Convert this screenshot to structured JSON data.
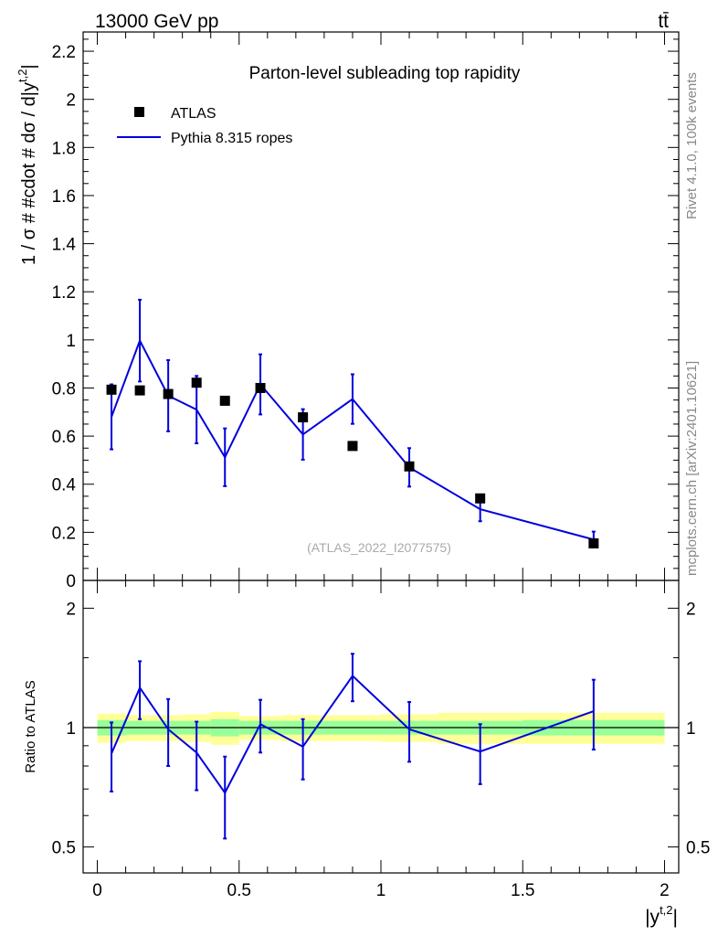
{
  "header": {
    "left": "13000 GeV pp",
    "right": "tt̄"
  },
  "side_labels": {
    "rivet": "Rivet 4.1.0,  100k events",
    "mcplots": "mcplots.cern.ch [arXiv:2401.10621]"
  },
  "chart_data": {
    "type": "line",
    "title": "Parton-level subleading top rapidity",
    "watermark": "(ATLAS_2022_I2077575)",
    "ylabel_main": "1 / σ # #cdot # dσ / d|y^{t,2}|",
    "ylabel_main_parts": {
      "pre": "1 / σ # #cdot # dσ / d|y",
      "sup": "t,2",
      "post": "|"
    },
    "ylabel_ratio": "Ratio to ATLAS",
    "xlabel": "|y^{t,2}|",
    "xlabel_parts": {
      "pre": "|y",
      "sup": "t,2",
      "post": "|"
    },
    "xlim": [
      -0.05,
      2.05
    ],
    "ylim_main": [
      0,
      2.28
    ],
    "ylim_ratio": [
      0.43,
      2.35
    ],
    "x_ticks": [
      "0",
      "0.5",
      "1",
      "1.5",
      "2"
    ],
    "y_ticks_main": [
      "0",
      "0.2",
      "0.4",
      "0.6",
      "0.8",
      "1",
      "1.2",
      "1.4",
      "1.6",
      "1.8",
      "2",
      "2.2"
    ],
    "y_ticks_ratio": [
      "0.5",
      "1",
      "2"
    ],
    "legend": [
      {
        "label": "ATLAS",
        "marker": "square",
        "color": "#000000"
      },
      {
        "label": "Pythia 8.315 ropes",
        "marker": "line",
        "color": "#0000dd"
      }
    ],
    "bins": [
      {
        "x": 0.05,
        "lo": 0.0,
        "hi": 0.1,
        "data": 0.793,
        "mc": 0.68,
        "mc_err": 0.135
      },
      {
        "x": 0.15,
        "lo": 0.1,
        "hi": 0.2,
        "data": 0.79,
        "mc": 0.997,
        "mc_err": 0.17
      },
      {
        "x": 0.25,
        "lo": 0.2,
        "hi": 0.3,
        "data": 0.775,
        "mc": 0.768,
        "mc_err": 0.148
      },
      {
        "x": 0.35,
        "lo": 0.3,
        "hi": 0.4,
        "data": 0.822,
        "mc": 0.71,
        "mc_err": 0.14
      },
      {
        "x": 0.45,
        "lo": 0.4,
        "hi": 0.5,
        "data": 0.747,
        "mc": 0.512,
        "mc_err": 0.12
      },
      {
        "x": 0.575,
        "lo": 0.5,
        "hi": 0.65,
        "data": 0.8,
        "mc": 0.815,
        "mc_err": 0.125
      },
      {
        "x": 0.725,
        "lo": 0.65,
        "hi": 0.8,
        "data": 0.678,
        "mc": 0.607,
        "mc_err": 0.105
      },
      {
        "x": 0.9,
        "lo": 0.8,
        "hi": 1.0,
        "data": 0.559,
        "mc": 0.754,
        "mc_err": 0.103
      },
      {
        "x": 1.1,
        "lo": 1.0,
        "hi": 1.2,
        "data": 0.474,
        "mc": 0.47,
        "mc_err": 0.08
      },
      {
        "x": 1.35,
        "lo": 1.2,
        "hi": 1.5,
        "data": 0.341,
        "mc": 0.296,
        "mc_err": 0.05
      },
      {
        "x": 1.75,
        "lo": 1.5,
        "hi": 2.0,
        "data": 0.154,
        "mc": 0.17,
        "mc_err": 0.033
      }
    ],
    "ratio": [
      {
        "x": 0.05,
        "r": 0.86,
        "err": 0.17,
        "band_stat": 0.045,
        "band_tot": 0.085
      },
      {
        "x": 0.15,
        "r": 1.26,
        "err": 0.21,
        "band_stat": 0.04,
        "band_tot": 0.075
      },
      {
        "x": 0.25,
        "r": 0.99,
        "err": 0.19,
        "band_stat": 0.04,
        "band_tot": 0.075
      },
      {
        "x": 0.35,
        "r": 0.865,
        "err": 0.17,
        "band_stat": 0.04,
        "band_tot": 0.08
      },
      {
        "x": 0.45,
        "r": 0.685,
        "err": 0.16,
        "band_stat": 0.05,
        "band_tot": 0.095
      },
      {
        "x": 0.575,
        "r": 1.02,
        "err": 0.155,
        "band_stat": 0.04,
        "band_tot": 0.07
      },
      {
        "x": 0.725,
        "r": 0.895,
        "err": 0.155,
        "band_stat": 0.04,
        "band_tot": 0.075
      },
      {
        "x": 0.9,
        "r": 1.35,
        "err": 0.185,
        "band_stat": 0.04,
        "band_tot": 0.075
      },
      {
        "x": 1.1,
        "r": 0.99,
        "err": 0.17,
        "band_stat": 0.04,
        "band_tot": 0.08
      },
      {
        "x": 1.35,
        "r": 0.87,
        "err": 0.15,
        "band_stat": 0.04,
        "band_tot": 0.09
      },
      {
        "x": 1.75,
        "r": 1.1,
        "err": 0.22,
        "band_stat": 0.045,
        "band_tot": 0.09
      }
    ]
  }
}
